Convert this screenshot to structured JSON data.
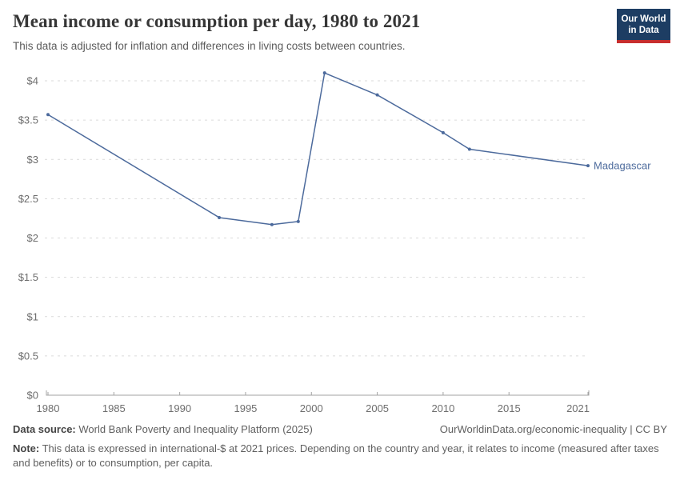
{
  "header": {
    "title": "Mean income or consumption per day, 1980 to 2021",
    "subtitle": "This data is adjusted for inflation and differences in living costs between countries.",
    "logo": {
      "line1": "Our World",
      "line2": "in Data"
    }
  },
  "chart_data": {
    "type": "line",
    "title": "Mean income or consumption per day, 1980 to 2021",
    "xlabel": "",
    "ylabel": "",
    "xlim": [
      1980,
      2021
    ],
    "ylim": [
      0,
      4.2
    ],
    "grid": "horizontal-dashed",
    "legend": "end-of-line-label",
    "x_ticks": [
      {
        "value": 1980,
        "label": "1980"
      },
      {
        "value": 1985,
        "label": "1985"
      },
      {
        "value": 1990,
        "label": "1990"
      },
      {
        "value": 1995,
        "label": "1995"
      },
      {
        "value": 2000,
        "label": "2000"
      },
      {
        "value": 2005,
        "label": "2005"
      },
      {
        "value": 2010,
        "label": "2010"
      },
      {
        "value": 2015,
        "label": "2015"
      },
      {
        "value": 2021,
        "label": "2021"
      }
    ],
    "y_ticks": [
      {
        "value": 0,
        "label": "$0"
      },
      {
        "value": 0.5,
        "label": "$0.5"
      },
      {
        "value": 1,
        "label": "$1"
      },
      {
        "value": 1.5,
        "label": "$1.5"
      },
      {
        "value": 2,
        "label": "$2"
      },
      {
        "value": 2.5,
        "label": "$2.5"
      },
      {
        "value": 3,
        "label": "$3"
      },
      {
        "value": 3.5,
        "label": "$3.5"
      },
      {
        "value": 4,
        "label": "$4"
      }
    ],
    "series": [
      {
        "name": "Madagascar",
        "color": "#4c6a9c",
        "points": [
          {
            "year": 1980,
            "value": 3.57
          },
          {
            "year": 1993,
            "value": 2.26
          },
          {
            "year": 1997,
            "value": 2.17
          },
          {
            "year": 1999,
            "value": 2.21
          },
          {
            "year": 2001,
            "value": 4.1
          },
          {
            "year": 2005,
            "value": 3.82
          },
          {
            "year": 2010,
            "value": 3.34
          },
          {
            "year": 2012,
            "value": 3.13
          },
          {
            "year": 2021,
            "value": 2.92
          }
        ]
      }
    ]
  },
  "footer": {
    "datasource_label": "Data source:",
    "datasource_text": " World Bank Poverty and Inequality Platform (2025)",
    "attribution": "OurWorldinData.org/economic-inequality | CC BY",
    "note_label": "Note:",
    "note_text": " This data is expressed in international-$ at 2021 prices. Depending on the country and year, it relates to income (measured after taxes and benefits) or to consumption, per capita."
  },
  "colors": {
    "line": "#4c6a9c",
    "gridline": "#dadada",
    "axis": "#a3a3a3",
    "tick_label": "#6e6e6e",
    "logo_bg": "#1d3d63",
    "logo_bar": "#c72e2e"
  }
}
